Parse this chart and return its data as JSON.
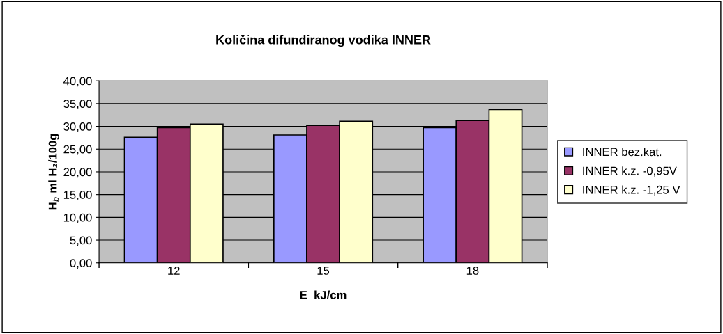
{
  "chart_data": {
    "type": "bar",
    "title": "Količina difundiranog vodika INNER",
    "xlabel": "E  kJ/cm",
    "ylabel": "H$_{b}$ ml H₂/100g",
    "categories": [
      "12",
      "15",
      "18"
    ],
    "series": [
      {
        "name": "INNER bez.kat.",
        "color": "#9999ff",
        "values": [
          27.6,
          28.1,
          29.7
        ]
      },
      {
        "name": "INNER k.z. -0,95V",
        "color": "#993366",
        "values": [
          29.7,
          30.2,
          31.3
        ]
      },
      {
        "name": "INNER k.z. -1,25 V",
        "color": "#ffffcc",
        "values": [
          30.5,
          31.1,
          33.7
        ]
      }
    ],
    "ylim": [
      0,
      40
    ],
    "yticks": [
      {
        "value": 0,
        "label": "0,00"
      },
      {
        "value": 5,
        "label": "5,00"
      },
      {
        "value": 10,
        "label": "10,00"
      },
      {
        "value": 15,
        "label": "15,00"
      },
      {
        "value": 20,
        "label": "20,00"
      },
      {
        "value": 25,
        "label": "25,00"
      },
      {
        "value": 30,
        "label": "30,00"
      },
      {
        "value": 35,
        "label": "35,00"
      },
      {
        "value": 40,
        "label": "40,00"
      }
    ],
    "grid": "y",
    "legend": "right"
  }
}
